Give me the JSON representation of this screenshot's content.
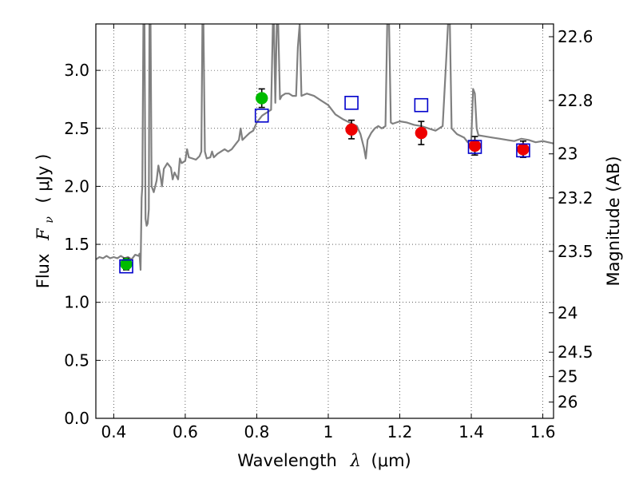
{
  "chart_data": {
    "type": "scatter",
    "xlabel_prefix": "Wavelength",
    "xlabel_symbol": "λ",
    "xlabel_unit": "(μm)",
    "ylabel_prefix": "Flux",
    "ylabel_symbol": "F",
    "ylabel_subscript": "ν",
    "ylabel_unit": "( μJy )",
    "ylabel_right": "Magnitude (AB)",
    "xlim": [
      0.35,
      1.63
    ],
    "ylim": [
      0.0,
      3.4
    ],
    "grid": true,
    "grid_style": "dotted",
    "x_ticks": [
      0.4,
      0.6,
      0.8,
      1.0,
      1.2,
      1.4,
      1.6
    ],
    "x_tick_labels": [
      "0.4",
      "0.6",
      "0.8",
      "1",
      "1.2",
      "1.4",
      "1.6"
    ],
    "y_ticks": [
      0.0,
      0.5,
      1.0,
      1.5,
      2.0,
      2.5,
      3.0
    ],
    "y_tick_labels": [
      "0.0",
      "0.5",
      "1.0",
      "1.5",
      "2.0",
      "2.5",
      "3.0"
    ],
    "right_ticks": [
      {
        "label": "22.6",
        "flux": 3.29
      },
      {
        "label": "22.8",
        "flux": 2.74
      },
      {
        "label": "23",
        "flux": 2.28
      },
      {
        "label": "23.2",
        "flux": 1.9
      },
      {
        "label": "23.5",
        "flux": 1.44
      },
      {
        "label": "24",
        "flux": 0.91
      },
      {
        "label": "24.5",
        "flux": 0.57
      },
      {
        "label": "25",
        "flux": 0.36
      },
      {
        "label": "26",
        "flux": 0.14
      }
    ],
    "colors": {
      "spectrum": "#808080",
      "green": "#00bb00",
      "red": "#ee0000",
      "model": "#0000cc",
      "errorbar": "#000000"
    },
    "series": [
      {
        "marker": "circle",
        "color": "#00bb00",
        "points": [
          {
            "x": 0.435,
            "y": 1.33,
            "yerr": 0.05
          },
          {
            "x": 0.814,
            "y": 2.76,
            "yerr": 0.08
          }
        ]
      },
      {
        "marker": "circle",
        "color": "#ee0000",
        "points": [
          {
            "x": 1.065,
            "y": 2.49,
            "yerr": 0.08
          },
          {
            "x": 1.26,
            "y": 2.46,
            "yerr": 0.1
          },
          {
            "x": 1.41,
            "y": 2.35,
            "yerr": 0.08
          },
          {
            "x": 1.545,
            "y": 2.32,
            "yerr": 0.07
          }
        ]
      },
      {
        "marker": "open-square",
        "color": "#0000cc",
        "points": [
          {
            "x": 0.435,
            "y": 1.31
          },
          {
            "x": 0.814,
            "y": 2.61
          },
          {
            "x": 1.065,
            "y": 2.72
          },
          {
            "x": 1.26,
            "y": 2.7
          },
          {
            "x": 1.41,
            "y": 2.34
          },
          {
            "x": 1.545,
            "y": 2.31
          }
        ]
      }
    ],
    "spectrum": [
      [
        0.35,
        1.37
      ],
      [
        0.36,
        1.39
      ],
      [
        0.37,
        1.38
      ],
      [
        0.38,
        1.4
      ],
      [
        0.39,
        1.38
      ],
      [
        0.4,
        1.39
      ],
      [
        0.41,
        1.38
      ],
      [
        0.42,
        1.4
      ],
      [
        0.43,
        1.38
      ],
      [
        0.44,
        1.39
      ],
      [
        0.45,
        1.37
      ],
      [
        0.46,
        1.41
      ],
      [
        0.47,
        1.4
      ],
      [
        0.472,
        1.42
      ],
      [
        0.475,
        1.28
      ],
      [
        0.478,
        1.9
      ],
      [
        0.48,
        2.0
      ],
      [
        0.483,
        3.4
      ],
      [
        0.486,
        3.4
      ],
      [
        0.489,
        1.72
      ],
      [
        0.492,
        1.66
      ],
      [
        0.495,
        1.68
      ],
      [
        0.498,
        1.8
      ],
      [
        0.5,
        3.4
      ],
      [
        0.503,
        3.4
      ],
      [
        0.506,
        2.0
      ],
      [
        0.512,
        1.95
      ],
      [
        0.52,
        2.05
      ],
      [
        0.525,
        2.18
      ],
      [
        0.53,
        2.1
      ],
      [
        0.535,
        2.0
      ],
      [
        0.54,
        2.15
      ],
      [
        0.55,
        2.2
      ],
      [
        0.56,
        2.16
      ],
      [
        0.565,
        2.06
      ],
      [
        0.57,
        2.12
      ],
      [
        0.58,
        2.06
      ],
      [
        0.585,
        2.24
      ],
      [
        0.59,
        2.2
      ],
      [
        0.6,
        2.22
      ],
      [
        0.605,
        2.32
      ],
      [
        0.61,
        2.25
      ],
      [
        0.62,
        2.24
      ],
      [
        0.63,
        2.23
      ],
      [
        0.64,
        2.26
      ],
      [
        0.645,
        2.3
      ],
      [
        0.648,
        3.4
      ],
      [
        0.651,
        3.4
      ],
      [
        0.655,
        2.3
      ],
      [
        0.66,
        2.24
      ],
      [
        0.67,
        2.25
      ],
      [
        0.675,
        2.3
      ],
      [
        0.68,
        2.25
      ],
      [
        0.69,
        2.28
      ],
      [
        0.7,
        2.3
      ],
      [
        0.71,
        2.32
      ],
      [
        0.72,
        2.3
      ],
      [
        0.73,
        2.32
      ],
      [
        0.74,
        2.36
      ],
      [
        0.75,
        2.4
      ],
      [
        0.755,
        2.5
      ],
      [
        0.76,
        2.4
      ],
      [
        0.77,
        2.43
      ],
      [
        0.78,
        2.46
      ],
      [
        0.79,
        2.48
      ],
      [
        0.8,
        2.55
      ],
      [
        0.81,
        2.59
      ],
      [
        0.815,
        2.61
      ],
      [
        0.82,
        2.62
      ],
      [
        0.83,
        2.64
      ],
      [
        0.84,
        2.66
      ],
      [
        0.845,
        3.4
      ],
      [
        0.848,
        3.4
      ],
      [
        0.852,
        2.72
      ],
      [
        0.856,
        3.4
      ],
      [
        0.86,
        3.4
      ],
      [
        0.865,
        2.75
      ],
      [
        0.87,
        2.78
      ],
      [
        0.88,
        2.8
      ],
      [
        0.89,
        2.8
      ],
      [
        0.9,
        2.78
      ],
      [
        0.91,
        2.78
      ],
      [
        0.915,
        3.2
      ],
      [
        0.92,
        3.4
      ],
      [
        0.925,
        2.78
      ],
      [
        0.94,
        2.8
      ],
      [
        0.96,
        2.78
      ],
      [
        0.98,
        2.74
      ],
      [
        1.0,
        2.7
      ],
      [
        1.02,
        2.62
      ],
      [
        1.04,
        2.58
      ],
      [
        1.06,
        2.55
      ],
      [
        1.08,
        2.52
      ],
      [
        1.09,
        2.45
      ],
      [
        1.1,
        2.33
      ],
      [
        1.105,
        2.24
      ],
      [
        1.11,
        2.4
      ],
      [
        1.12,
        2.46
      ],
      [
        1.13,
        2.5
      ],
      [
        1.14,
        2.52
      ],
      [
        1.15,
        2.5
      ],
      [
        1.16,
        2.52
      ],
      [
        1.165,
        3.4
      ],
      [
        1.17,
        3.4
      ],
      [
        1.175,
        2.55
      ],
      [
        1.18,
        2.54
      ],
      [
        1.2,
        2.56
      ],
      [
        1.22,
        2.55
      ],
      [
        1.24,
        2.53
      ],
      [
        1.26,
        2.52
      ],
      [
        1.28,
        2.5
      ],
      [
        1.3,
        2.48
      ],
      [
        1.32,
        2.52
      ],
      [
        1.33,
        3.1
      ],
      [
        1.335,
        3.4
      ],
      [
        1.34,
        3.4
      ],
      [
        1.345,
        2.5
      ],
      [
        1.36,
        2.45
      ],
      [
        1.38,
        2.42
      ],
      [
        1.39,
        2.38
      ],
      [
        1.4,
        2.4
      ],
      [
        1.405,
        2.84
      ],
      [
        1.41,
        2.8
      ],
      [
        1.415,
        2.5
      ],
      [
        1.42,
        2.44
      ],
      [
        1.44,
        2.43
      ],
      [
        1.46,
        2.42
      ],
      [
        1.48,
        2.41
      ],
      [
        1.5,
        2.4
      ],
      [
        1.52,
        2.39
      ],
      [
        1.54,
        2.41
      ],
      [
        1.56,
        2.4
      ],
      [
        1.58,
        2.38
      ],
      [
        1.6,
        2.39
      ],
      [
        1.63,
        2.37
      ]
    ]
  }
}
